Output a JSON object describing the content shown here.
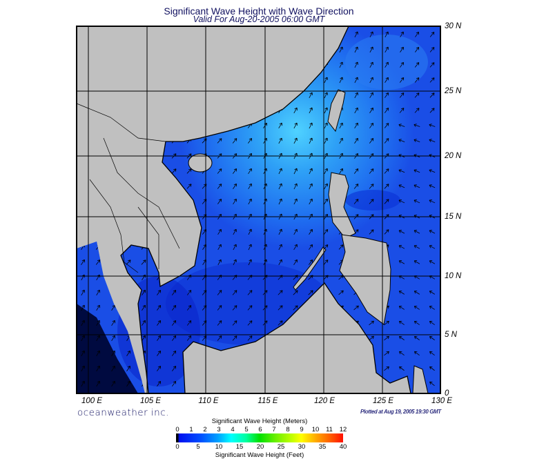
{
  "header": {
    "title": "Significant Wave Height with Wave Direction",
    "subtitle": "Valid For Aug-20-2005 06:00 GMT"
  },
  "map": {
    "lon_labels": [
      "100 E",
      "105 E",
      "110 E",
      "115 E",
      "120 E",
      "125 E",
      "130 E"
    ],
    "lat_labels": [
      "30 N",
      "25 N",
      "20 N",
      "15 N",
      "10 N",
      "5 N",
      "0"
    ],
    "colors": {
      "land": "#c0c0c0",
      "ocean": "#1a4ee6",
      "ocean_bright": "#2ea8f8",
      "ocean_dark": "#0a22c8"
    }
  },
  "footer": {
    "brand": "oceanweather inc.",
    "plotted": "Plotted at Aug 19, 2005 19:30 GMT"
  },
  "legend": {
    "title_meters": "Significant Wave Height (Meters)",
    "title_feet": "Significant Wave Height (Feet)",
    "meters": [
      "0",
      "1",
      "2",
      "3",
      "4",
      "5",
      "6",
      "7",
      "8",
      "9",
      "10",
      "11",
      "12"
    ],
    "feet": [
      "0",
      "5",
      "10",
      "15",
      "20",
      "25",
      "30",
      "35",
      "40"
    ]
  }
}
